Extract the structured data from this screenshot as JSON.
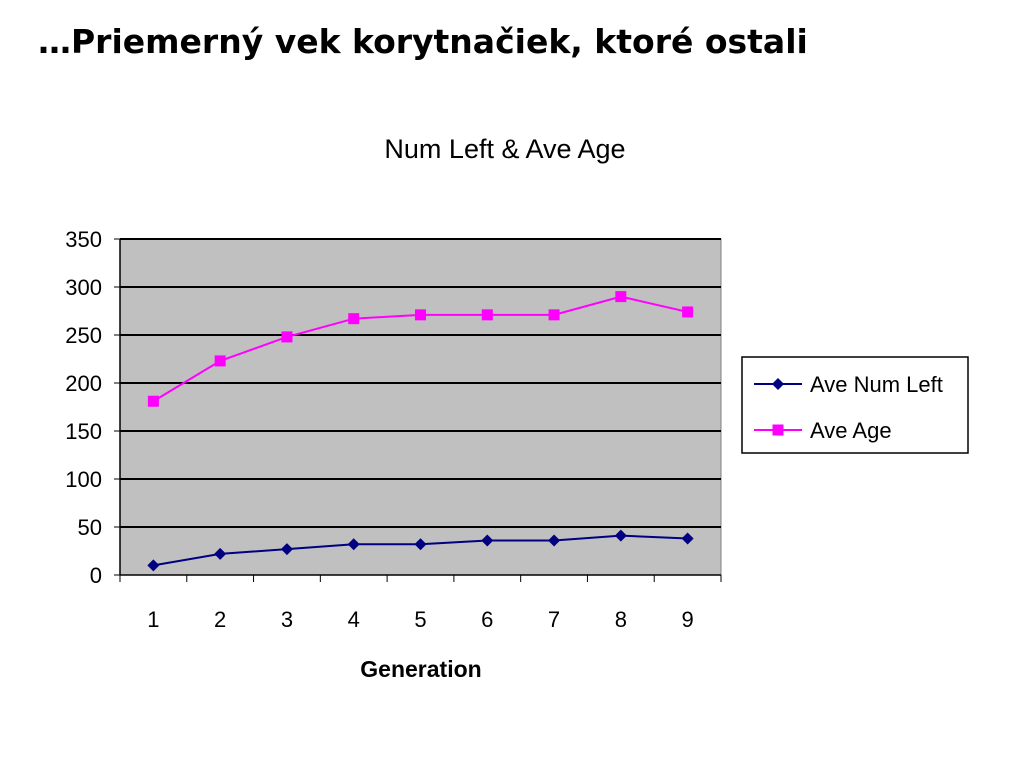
{
  "page": {
    "heading": "…Priemerný vek korytnačiek, ktoré ostali"
  },
  "chart_data": {
    "type": "line",
    "title": "Num Left & Ave Age",
    "xlabel": "Generation",
    "ylabel": "",
    "categories": [
      "1",
      "2",
      "3",
      "4",
      "5",
      "6",
      "7",
      "8",
      "9"
    ],
    "ylim": [
      0,
      350
    ],
    "yticks": [
      0,
      50,
      100,
      150,
      200,
      250,
      300,
      350
    ],
    "grid": true,
    "legend_position": "right",
    "plot_background": "#c0c0c0",
    "series": [
      {
        "name": "Ave Num Left",
        "marker": "diamond",
        "color": "#000080",
        "values": [
          10,
          22,
          27,
          32,
          32,
          36,
          36,
          41,
          38
        ]
      },
      {
        "name": "Ave Age",
        "marker": "square",
        "color": "#ff00ff",
        "values": [
          181,
          223,
          248,
          267,
          271,
          271,
          271,
          290,
          274
        ]
      }
    ]
  }
}
